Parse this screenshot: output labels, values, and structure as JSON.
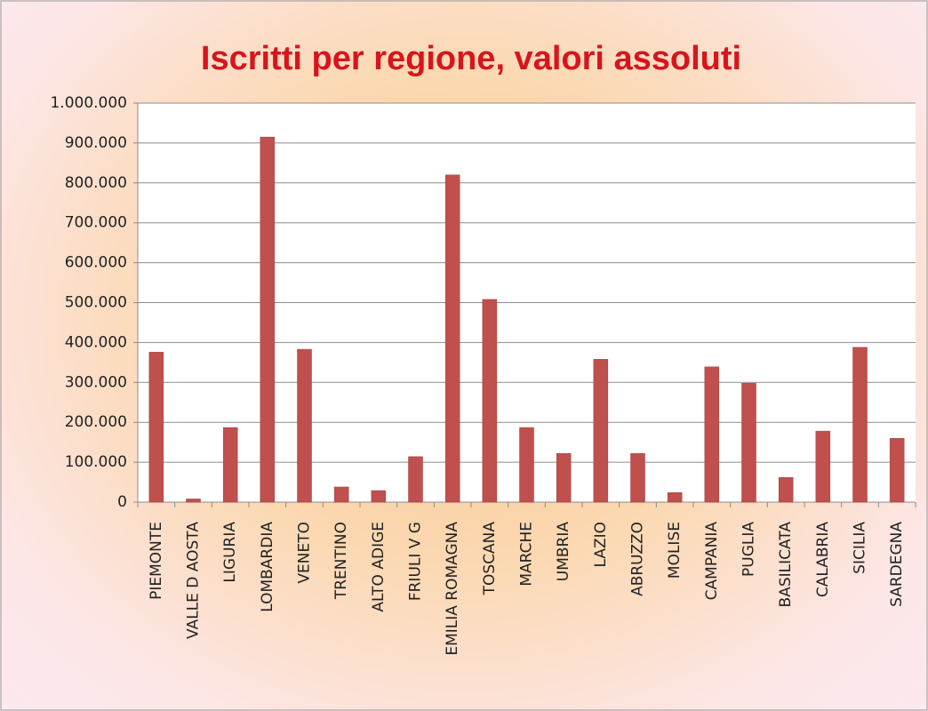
{
  "chart_data": {
    "type": "bar",
    "title": "Iscritti per regione, valori assoluti",
    "categories": [
      "PIEMONTE",
      "VALLE D AOSTA",
      "LIGURIA",
      "LOMBARDIA",
      "VENETO",
      "TRENTINO",
      "ALTO ADIGE",
      "FRIULI V G",
      "EMILIA ROMAGNA",
      "TOSCANA",
      "MARCHE",
      "UMBRIA",
      "LAZIO",
      "ABRUZZO",
      "MOLISE",
      "CAMPANIA",
      "PUGLIA",
      "BASILICATA",
      "CALABRIA",
      "SICILIA",
      "SARDEGNA"
    ],
    "values": [
      376000,
      8000,
      187000,
      915000,
      383000,
      38000,
      29000,
      114000,
      820000,
      508000,
      187000,
      122000,
      358000,
      122000,
      24000,
      339000,
      298000,
      62000,
      178000,
      388000,
      160000
    ],
    "color": "#c0504d",
    "ylim": [
      0,
      1000000
    ],
    "yticks": [
      0,
      {
        "value": 100000,
        "label": "100.000"
      },
      {
        "value": 200000,
        "label": "200.000"
      },
      {
        "value": 300000,
        "label": "300.000"
      },
      {
        "value": 400000,
        "label": "400.000"
      },
      {
        "value": 500000,
        "label": "500.000"
      },
      {
        "value": 600000,
        "label": "600.000"
      },
      {
        "value": 700000,
        "label": "700.000"
      },
      {
        "value": 800000,
        "label": "800.000"
      },
      {
        "value": 900000,
        "label": "900.000"
      },
      {
        "value": 1000000,
        "label": "1.000.000"
      }
    ],
    "grid": true
  }
}
